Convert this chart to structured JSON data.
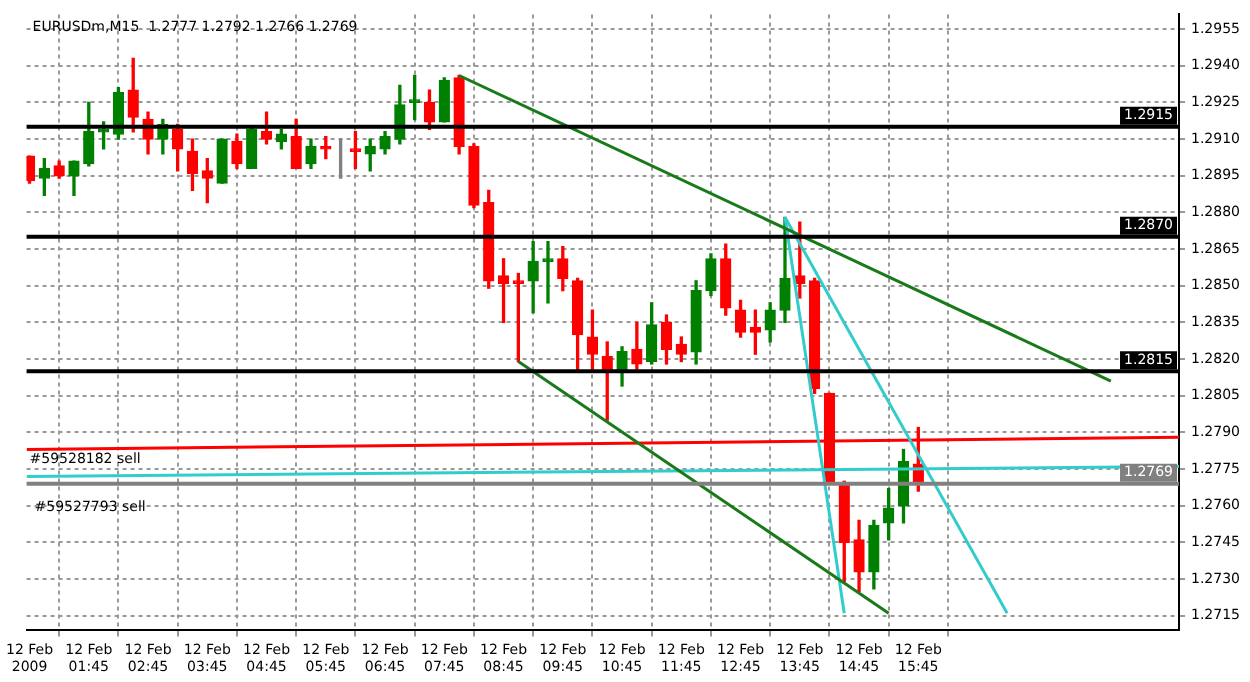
{
  "chart_data": {
    "type": "candlestick",
    "title": "EURUSDm,M15  1.2777 1.2792 1.2766 1.2769",
    "x": [
      "2009-02-12T00:45",
      "2009-02-12T01:00",
      "2009-02-12T01:15",
      "2009-02-12T01:30",
      "2009-02-12T01:45",
      "2009-02-12T02:00",
      "2009-02-12T02:15",
      "2009-02-12T02:30",
      "2009-02-12T02:45",
      "2009-02-12T03:00",
      "2009-02-12T03:15",
      "2009-02-12T03:30",
      "2009-02-12T03:45",
      "2009-02-12T04:00",
      "2009-02-12T04:15",
      "2009-02-12T04:30",
      "2009-02-12T04:45",
      "2009-02-12T05:00",
      "2009-02-12T05:15",
      "2009-02-12T05:30",
      "2009-02-12T05:45",
      "2009-02-12T06:00",
      "2009-02-12T06:15",
      "2009-02-12T06:30",
      "2009-02-12T06:45",
      "2009-02-12T07:00",
      "2009-02-12T07:15",
      "2009-02-12T07:30",
      "2009-02-12T07:45",
      "2009-02-12T08:00",
      "2009-02-12T08:15",
      "2009-02-12T08:30",
      "2009-02-12T08:45",
      "2009-02-12T09:00",
      "2009-02-12T09:15",
      "2009-02-12T09:30",
      "2009-02-12T09:45",
      "2009-02-12T10:00",
      "2009-02-12T10:15",
      "2009-02-12T10:30",
      "2009-02-12T10:45",
      "2009-02-12T11:00",
      "2009-02-12T11:15",
      "2009-02-12T11:30",
      "2009-02-12T11:45",
      "2009-02-12T12:00",
      "2009-02-12T12:15",
      "2009-02-12T12:30",
      "2009-02-12T12:45",
      "2009-02-12T13:00",
      "2009-02-12T13:15",
      "2009-02-12T13:30",
      "2009-02-12T13:45",
      "2009-02-12T14:00",
      "2009-02-12T14:15",
      "2009-02-12T14:30",
      "2009-02-12T14:45",
      "2009-02-12T15:00",
      "2009-02-12T15:15",
      "2009-02-12T15:30",
      "2009-02-12T15:45"
    ],
    "ohlc": [
      [
        1.2903,
        1.2903,
        1.2892,
        1.2893
      ],
      [
        1.2894,
        1.2902,
        1.2887,
        1.2898
      ],
      [
        1.2899,
        1.2901,
        1.2894,
        1.2895
      ],
      [
        1.2895,
        1.2901,
        1.2887,
        1.2901
      ],
      [
        1.29,
        1.2925,
        1.2899,
        1.2913
      ],
      [
        1.2913,
        1.2917,
        1.2906,
        1.2914
      ],
      [
        1.2912,
        1.2931,
        1.291,
        1.2929
      ],
      [
        1.293,
        1.2943,
        1.2913,
        1.2919
      ],
      [
        1.2918,
        1.2921,
        1.2904,
        1.291
      ],
      [
        1.291,
        1.2918,
        1.2904,
        1.2916
      ],
      [
        1.2914,
        1.2916,
        1.2897,
        1.2906
      ],
      [
        1.2905,
        1.291,
        1.2889,
        1.2896
      ],
      [
        1.2897,
        1.2902,
        1.2884,
        1.2894
      ],
      [
        1.2892,
        1.291,
        1.2892,
        1.291
      ],
      [
        1.2909,
        1.2912,
        1.2898,
        1.29
      ],
      [
        1.2898,
        1.2915,
        1.2898,
        1.2914
      ],
      [
        1.2913,
        1.2921,
        1.2908,
        1.291
      ],
      [
        1.2909,
        1.2914,
        1.2906,
        1.2912
      ],
      [
        1.2911,
        1.2918,
        1.2898,
        1.2898
      ],
      [
        1.29,
        1.291,
        1.2898,
        1.2907
      ],
      [
        1.2907,
        1.2911,
        1.2902,
        1.2906
      ],
      [
        1.2906,
        1.291,
        1.2894,
        1.2906
      ],
      [
        1.2906,
        1.2913,
        1.2898,
        1.2905
      ],
      [
        1.2904,
        1.291,
        1.2897,
        1.2907
      ],
      [
        1.2906,
        1.2913,
        1.2904,
        1.2911
      ],
      [
        1.291,
        1.2932,
        1.2908,
        1.2924
      ],
      [
        1.2925,
        1.2936,
        1.2918,
        1.2926
      ],
      [
        1.2925,
        1.293,
        1.2914,
        1.2917
      ],
      [
        1.2917,
        1.2935,
        1.2917,
        1.2934
      ],
      [
        1.2935,
        1.2936,
        1.2904,
        1.2907
      ],
      [
        1.2907,
        1.2908,
        1.2882,
        1.2883
      ],
      [
        1.2884,
        1.2889,
        1.2849,
        1.2852
      ],
      [
        1.2854,
        1.2861,
        1.2835,
        1.2851
      ],
      [
        1.2852,
        1.2855,
        1.2819,
        1.2851
      ],
      [
        1.2852,
        1.2868,
        1.2839,
        1.286
      ],
      [
        1.286,
        1.2868,
        1.2843,
        1.2861
      ],
      [
        1.2861,
        1.2866,
        1.2848,
        1.2853
      ],
      [
        1.2852,
        1.2853,
        1.2815,
        1.283
      ],
      [
        1.2829,
        1.284,
        1.2816,
        1.2822
      ],
      [
        1.2821,
        1.2827,
        1.2795,
        1.2815
      ],
      [
        1.2815,
        1.2825,
        1.2809,
        1.2823
      ],
      [
        1.2824,
        1.2835,
        1.2816,
        1.2818
      ],
      [
        1.2819,
        1.2843,
        1.2818,
        1.2834
      ],
      [
        1.2835,
        1.2838,
        1.2818,
        1.2824
      ],
      [
        1.2826,
        1.2829,
        1.2819,
        1.2822
      ],
      [
        1.2823,
        1.2852,
        1.2818,
        1.2848
      ],
      [
        1.2848,
        1.2863,
        1.2846,
        1.2861
      ],
      [
        1.2861,
        1.2867,
        1.2838,
        1.2841
      ],
      [
        1.284,
        1.2844,
        1.2829,
        1.2831
      ],
      [
        1.2833,
        1.284,
        1.2822,
        1.2831
      ],
      [
        1.2832,
        1.2843,
        1.2827,
        1.284
      ],
      [
        1.284,
        1.2878,
        1.2835,
        1.2853
      ],
      [
        1.2854,
        1.2876,
        1.2845,
        1.2851
      ],
      [
        1.2852,
        1.2853,
        1.2806,
        1.2808
      ],
      [
        1.2806,
        1.2806,
        1.2769,
        1.277
      ],
      [
        1.2769,
        1.277,
        1.2729,
        1.2745
      ],
      [
        1.2746,
        1.2754,
        1.2725,
        1.2733
      ],
      [
        1.2733,
        1.2754,
        1.2726,
        1.2752
      ],
      [
        1.2753,
        1.2767,
        1.2746,
        1.2759
      ],
      [
        1.276,
        1.2783,
        1.2753,
        1.2778
      ],
      [
        1.2777,
        1.2792,
        1.2766,
        1.2769
      ]
    ],
    "colors": [
      "#ff0000",
      "#008000",
      "#ff0000",
      "#008000",
      "#008000",
      "#008000",
      "#008000",
      "#ff0000",
      "#ff0000",
      "#008000",
      "#ff0000",
      "#ff0000",
      "#ff0000",
      "#008000",
      "#ff0000",
      "#008000",
      "#ff0000",
      "#008000",
      "#ff0000",
      "#008000",
      "#ff0000",
      "#808080",
      "#ff0000",
      "#008000",
      "#008000",
      "#008000",
      "#008000",
      "#ff0000",
      "#008000",
      "#ff0000",
      "#ff0000",
      "#ff0000",
      "#ff0000",
      "#ff0000",
      "#008000",
      "#008000",
      "#ff0000",
      "#ff0000",
      "#ff0000",
      "#ff0000",
      "#008000",
      "#ff0000",
      "#008000",
      "#ff0000",
      "#ff0000",
      "#008000",
      "#008000",
      "#ff0000",
      "#ff0000",
      "#ff0000",
      "#008000",
      "#008000",
      "#ff0000",
      "#ff0000",
      "#ff0000",
      "#ff0000",
      "#ff0000",
      "#008000",
      "#008000",
      "#008000",
      "#ff0000"
    ],
    "series": [
      {
        "type": "line",
        "color": "#1a7a1a",
        "x": [
          "2009-02-12T08:00",
          "2009-02-12T19:00"
        ],
        "values": [
          1.2936,
          1.2811
        ]
      },
      {
        "type": "line",
        "color": "#1a7a1a",
        "x": [
          "2009-02-12T09:00",
          "2009-02-12T15:15"
        ],
        "values": [
          1.2819,
          1.2716
        ]
      },
      {
        "type": "line",
        "color": "#33cccc",
        "x": [
          "2009-02-12T13:30",
          "2009-02-12T14:30"
        ],
        "values": [
          1.2878,
          1.2716
        ]
      },
      {
        "type": "line",
        "color": "#33cccc",
        "x": [
          "2009-02-12T13:30",
          "2009-02-12T17:15"
        ],
        "values": [
          1.2878,
          1.2716
        ]
      },
      {
        "type": "line",
        "color": "#ff0000",
        "x": [
          "2009-02-12T00:42",
          "2009-02-12T20:09"
        ],
        "values": [
          1.2783,
          1.2788
        ]
      },
      {
        "type": "line",
        "color": "#33cccc",
        "x": [
          "2009-02-12T00:42",
          "2009-02-12T20:09"
        ],
        "values": [
          1.2772,
          1.2776
        ]
      }
    ],
    "ref_lines": [
      {
        "axis": "y",
        "value": 1.2915,
        "label": "1.2915",
        "color": "#000000"
      },
      {
        "axis": "y",
        "value": 1.287,
        "label": "1.2870",
        "color": "#000000"
      },
      {
        "axis": "y",
        "value": 1.2815,
        "label": "1.2815",
        "color": "#000000"
      },
      {
        "axis": "y",
        "value": 1.2769,
        "label": "1.2769",
        "color": "#808080"
      }
    ],
    "annotations": [
      {
        "text": "#59528182 sell",
        "x": "2009-02-12T00:45",
        "y": 1.2779
      },
      "#59527793 sell"
    ],
    "xlim": [
      "2009-02-12T00:42",
      "2009-02-12T20:09"
    ],
    "xticks": [
      {
        "value": "2009-02-12T00:45",
        "label": "12 Feb 2009"
      },
      {
        "value": "2009-02-12T01:45",
        "label": "12 Feb 01:45"
      },
      {
        "value": "2009-02-12T02:45",
        "label": "12 Feb 02:45"
      },
      {
        "value": "2009-02-12T03:45",
        "label": "12 Feb 03:45"
      },
      {
        "value": "2009-02-12T04:45",
        "label": "12 Feb 04:45"
      },
      {
        "value": "2009-02-12T05:45",
        "label": "12 Feb 05:45"
      },
      {
        "value": "2009-02-12T06:45",
        "label": "12 Feb 06:45"
      },
      {
        "value": "2009-02-12T07:45",
        "label": "12 Feb 07:45"
      },
      {
        "value": "2009-02-12T08:45",
        "label": "12 Feb 08:45"
      },
      {
        "value": "2009-02-12T09:45",
        "label": "12 Feb 09:45"
      },
      {
        "value": "2009-02-12T10:45",
        "label": "12 Feb 10:45"
      },
      {
        "value": "2009-02-12T11:45",
        "label": "12 Feb 11:45"
      },
      {
        "value": "2009-02-12T12:45",
        "label": "12 Feb 12:45"
      },
      {
        "value": "2009-02-12T13:45",
        "label": "12 Feb 13:45"
      },
      {
        "value": "2009-02-12T14:45",
        "label": "12 Feb 14:45"
      },
      {
        "value": "2009-02-12T15:45",
        "label": "12 Feb 15:45"
      }
    ],
    "ylim": [
      1.2709,
      1.2961
    ],
    "yticks": [
      1.2715,
      {
        "value": 1.273,
        "label": "1.2730"
      },
      1.2745,
      {
        "value": 1.276,
        "label": "1.2760"
      },
      1.2775,
      {
        "value": 1.279,
        "label": "1.2790"
      },
      1.2805,
      {
        "value": 1.282,
        "label": "1.2820"
      },
      1.2835,
      {
        "value": 1.285,
        "label": "1.2850"
      },
      1.2865,
      {
        "value": 1.288,
        "label": "1.2880"
      },
      1.2895,
      {
        "value": 1.291,
        "label": "1.2910"
      },
      1.2925,
      {
        "value": 1.294,
        "label": "1.2940"
      },
      1.2955
    ],
    "grid": true,
    "marker": "none"
  }
}
